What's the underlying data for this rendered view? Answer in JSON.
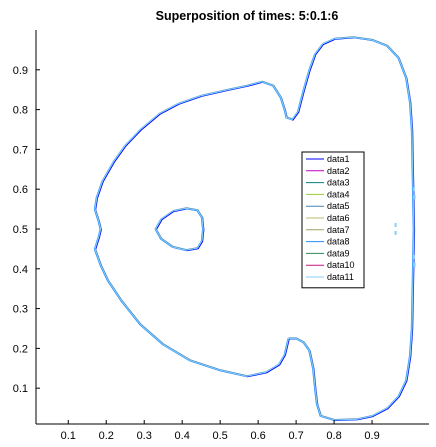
{
  "chart_data": {
    "type": "line",
    "title": "Superposition of times: 5:0.1:6",
    "xlabel": "",
    "ylabel": "",
    "xlim": [
      0.015,
      1.05
    ],
    "ylim": [
      0.01,
      1.0
    ],
    "xticks": [
      0.1,
      0.2,
      0.3,
      0.4,
      0.5,
      0.6,
      0.7,
      0.8,
      0.9
    ],
    "xtick_labels": [
      "0.1",
      "0.2",
      "0.3",
      "0.4",
      "0.5",
      "0.6",
      "0.7",
      "0.8",
      "0.9"
    ],
    "yticks": [
      0.1,
      0.2,
      0.3,
      0.4,
      0.5,
      0.6,
      0.7,
      0.8,
      0.9
    ],
    "ytick_labels": [
      "0.1",
      "0.2",
      "0.3",
      "0.4",
      "0.5",
      "0.6",
      "0.7",
      "0.8",
      "0.9"
    ],
    "grid": false,
    "legend_position": "right-center",
    "series": [
      {
        "name": "data1",
        "color": "#0000ff"
      },
      {
        "name": "data2",
        "color": "#bf00bf"
      },
      {
        "name": "data3",
        "color": "#008080"
      },
      {
        "name": "data4",
        "color": "#9acd32"
      },
      {
        "name": "data5",
        "color": "#4682b4"
      },
      {
        "name": "data6",
        "color": "#bdb76b"
      },
      {
        "name": "data7",
        "color": "#a0a060"
      },
      {
        "name": "data8",
        "color": "#1e90ff"
      },
      {
        "name": "data9",
        "color": "#2e8b57"
      },
      {
        "name": "data10",
        "color": "#c71585"
      },
      {
        "name": "data11",
        "color": "#87cefa"
      }
    ],
    "curves": {
      "outer": [
        [
          0.17,
          0.45
        ],
        [
          0.18,
          0.48
        ],
        [
          0.185,
          0.5
        ],
        [
          0.18,
          0.52
        ],
        [
          0.17,
          0.55
        ],
        [
          0.175,
          0.58
        ],
        [
          0.19,
          0.62
        ],
        [
          0.22,
          0.67
        ],
        [
          0.25,
          0.71
        ],
        [
          0.29,
          0.75
        ],
        [
          0.34,
          0.79
        ],
        [
          0.39,
          0.815
        ],
        [
          0.45,
          0.835
        ],
        [
          0.52,
          0.85
        ],
        [
          0.57,
          0.86
        ],
        [
          0.61,
          0.87
        ],
        [
          0.64,
          0.86
        ],
        [
          0.66,
          0.83
        ],
        [
          0.67,
          0.8
        ],
        [
          0.675,
          0.78
        ],
        [
          0.69,
          0.775
        ],
        [
          0.705,
          0.795
        ],
        [
          0.72,
          0.85
        ],
        [
          0.735,
          0.9
        ],
        [
          0.75,
          0.94
        ],
        [
          0.77,
          0.965
        ],
        [
          0.8,
          0.978
        ],
        [
          0.85,
          0.982
        ],
        [
          0.9,
          0.975
        ],
        [
          0.94,
          0.96
        ],
        [
          0.97,
          0.93
        ],
        [
          0.99,
          0.88
        ],
        [
          1.0,
          0.82
        ],
        [
          1.005,
          0.75
        ],
        [
          1.01,
          0.5
        ],
        [
          1.005,
          0.25
        ],
        [
          1.0,
          0.18
        ],
        [
          0.99,
          0.12
        ],
        [
          0.97,
          0.08
        ],
        [
          0.94,
          0.05
        ],
        [
          0.9,
          0.03
        ],
        [
          0.86,
          0.022
        ],
        [
          0.8,
          0.02
        ],
        [
          0.765,
          0.03
        ],
        [
          0.755,
          0.06
        ],
        [
          0.75,
          0.1
        ],
        [
          0.745,
          0.15
        ],
        [
          0.735,
          0.195
        ],
        [
          0.72,
          0.215
        ],
        [
          0.7,
          0.225
        ],
        [
          0.68,
          0.225
        ],
        [
          0.675,
          0.205
        ],
        [
          0.67,
          0.185
        ],
        [
          0.655,
          0.16
        ],
        [
          0.62,
          0.14
        ],
        [
          0.57,
          0.13
        ],
        [
          0.5,
          0.145
        ],
        [
          0.42,
          0.17
        ],
        [
          0.35,
          0.21
        ],
        [
          0.29,
          0.26
        ],
        [
          0.24,
          0.32
        ],
        [
          0.205,
          0.37
        ],
        [
          0.185,
          0.41
        ],
        [
          0.17,
          0.45
        ]
      ],
      "inner": [
        [
          0.33,
          0.5
        ],
        [
          0.345,
          0.525
        ],
        [
          0.375,
          0.545
        ],
        [
          0.41,
          0.552
        ],
        [
          0.44,
          0.547
        ],
        [
          0.452,
          0.53
        ],
        [
          0.455,
          0.5
        ],
        [
          0.452,
          0.47
        ],
        [
          0.44,
          0.452
        ],
        [
          0.41,
          0.447
        ],
        [
          0.375,
          0.455
        ],
        [
          0.345,
          0.475
        ],
        [
          0.33,
          0.5
        ]
      ],
      "right_marks": [
        [
          1.01,
          0.6
        ],
        [
          1.012,
          0.58
        ],
        [
          1.01,
          0.43
        ],
        [
          1.012,
          0.41
        ],
        [
          0.962,
          0.51
        ],
        [
          0.962,
          0.49
        ]
      ]
    }
  }
}
